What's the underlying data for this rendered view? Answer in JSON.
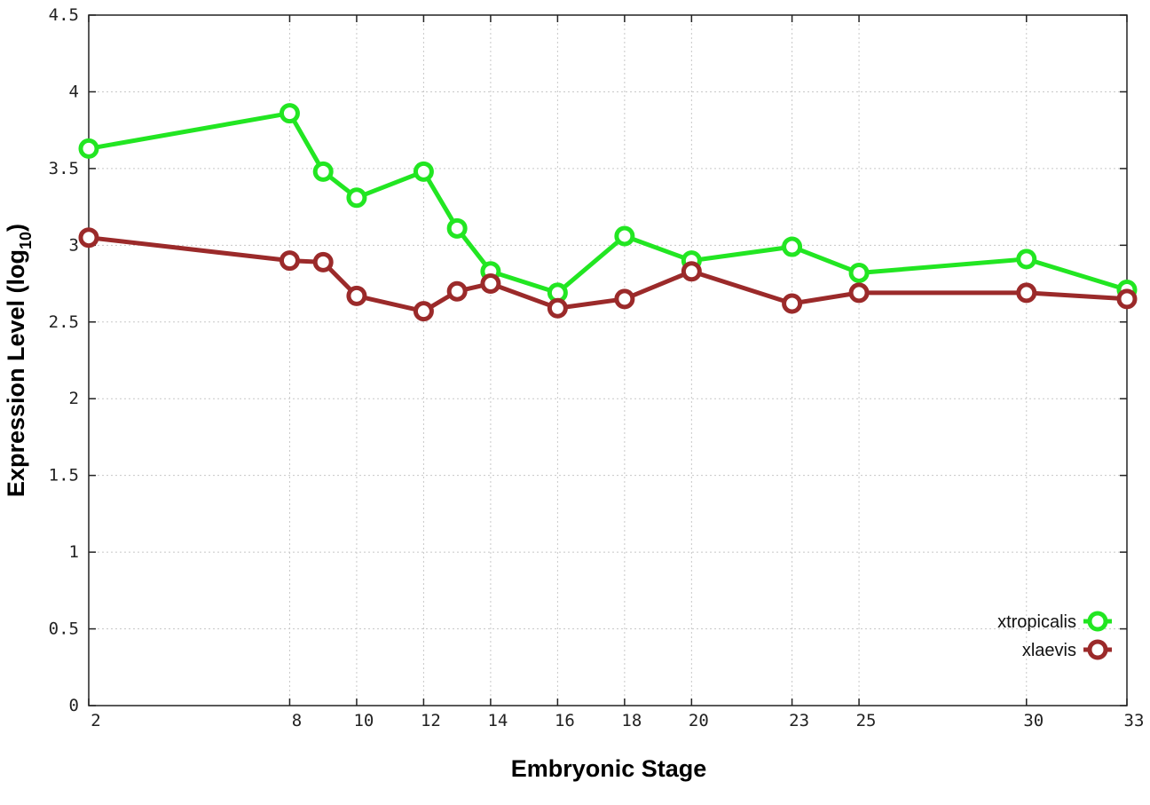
{
  "chart_data": {
    "type": "line",
    "x": [
      2,
      8,
      9,
      10,
      12,
      13,
      14,
      16,
      18,
      20,
      23,
      25,
      30,
      33
    ],
    "x_ticks": [
      2,
      8,
      10,
      12,
      14,
      16,
      18,
      20,
      23,
      25,
      30,
      33
    ],
    "xlim": [
      2,
      33
    ],
    "ylim": [
      0,
      4.5
    ],
    "y_ticks": [
      0,
      0.5,
      1,
      1.5,
      2,
      2.5,
      3,
      3.5,
      4,
      4.5
    ],
    "y_tick_labels": [
      "0",
      "0.5",
      "1",
      "1.5",
      "2",
      "2.5",
      "3",
      "3.5",
      "4",
      "4.5"
    ],
    "xlabel": "Embryonic Stage",
    "ylabel_main": "Expression Level (log",
    "ylabel_sub": "10",
    "ylabel_close": ")",
    "grid": true,
    "legend_position": "bottom-right",
    "series": [
      {
        "name": "xtropicalis",
        "color": "#22e622",
        "values": [
          3.63,
          3.86,
          3.48,
          3.31,
          3.48,
          3.11,
          2.83,
          2.69,
          3.06,
          2.9,
          2.99,
          2.82,
          2.91,
          2.71
        ]
      },
      {
        "name": "xlaevis",
        "color": "#9b2a2a",
        "values": [
          3.05,
          2.9,
          2.89,
          2.67,
          2.57,
          2.7,
          2.75,
          2.59,
          2.65,
          2.83,
          2.62,
          2.69,
          2.69,
          2.65
        ]
      }
    ]
  }
}
